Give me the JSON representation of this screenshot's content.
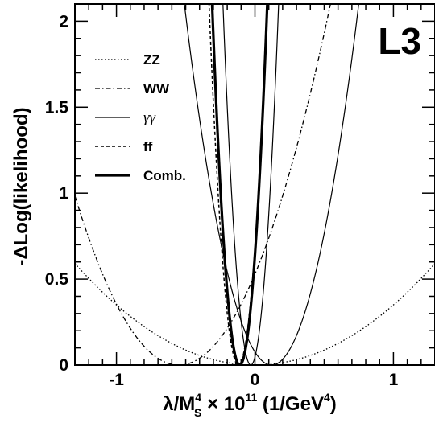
{
  "chart_data": {
    "type": "line",
    "experiment_label": "L3",
    "xlabel": {
      "prefix": "λ/M",
      "sup": "4",
      "sub": "S",
      "times": " × 10",
      "exp": "11",
      "unit_prefix": " (1/GeV",
      "unit_exp": "4",
      "unit_suffix": ")"
    },
    "ylabel": "-ΔLog(likelihood)",
    "xlim": [
      -1.3,
      1.3
    ],
    "ylim": [
      0,
      2.1
    ],
    "x_ticks": [
      -1,
      0,
      1
    ],
    "x_tick_labels": [
      "-1",
      "0",
      "1"
    ],
    "y_ticks": [
      0,
      0.5,
      1,
      1.5,
      2
    ],
    "y_tick_labels": [
      "0",
      "0.5",
      "1",
      "1.5",
      "2"
    ],
    "x_minor_step": 0.1,
    "y_minor_step": 0.1,
    "grid": false,
    "legend_position": "top-left",
    "series": [
      {
        "name": "ZZ",
        "style": "dotted",
        "width": 1.3,
        "center": 0.0,
        "curvature": 0.35
      },
      {
        "name": "WW",
        "style": "dashdot",
        "width": 1.3,
        "center": -0.55,
        "curvature": 1.75
      },
      {
        "name": "γγ",
        "style": "solid",
        "width": 1.2,
        "center": 0.12,
        "curvature": 5.3
      },
      {
        "name": "ff",
        "style": "dashed",
        "width": 1.5,
        "center": -0.12,
        "curvature": 47
      },
      {
        "name": "Comb.",
        "style": "solid",
        "width": 3.2,
        "center": -0.11,
        "curvature": 53
      }
    ],
    "extra_curves": [
      {
        "style": "solid",
        "width": 1.2,
        "center": -0.03,
        "curvature": 52
      }
    ]
  }
}
